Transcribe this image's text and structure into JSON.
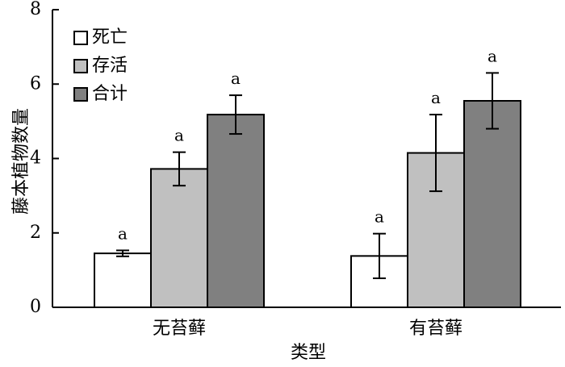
{
  "chart_data": {
    "type": "bar",
    "title": "",
    "xlabel": "类型",
    "ylabel": "藤本植物数量",
    "ylim": [
      0,
      8
    ],
    "yticks": [
      0,
      2,
      4,
      6,
      8
    ],
    "categories": [
      "无苔藓",
      "有苔藓"
    ],
    "legend_position": "top-left",
    "series": [
      {
        "name": "死亡",
        "color": "#ffffff",
        "values": [
          1.45,
          1.38
        ],
        "error": [
          0.08,
          0.6
        ],
        "labels": [
          "a",
          "a"
        ]
      },
      {
        "name": "存活",
        "color": "#c0c0c0",
        "values": [
          3.72,
          4.15
        ],
        "error": [
          0.45,
          1.03
        ],
        "labels": [
          "a",
          "a"
        ]
      },
      {
        "name": "合计",
        "color": "#808080",
        "values": [
          5.18,
          5.55
        ],
        "error": [
          0.52,
          0.75
        ],
        "labels": [
          "a",
          "a"
        ]
      }
    ]
  }
}
